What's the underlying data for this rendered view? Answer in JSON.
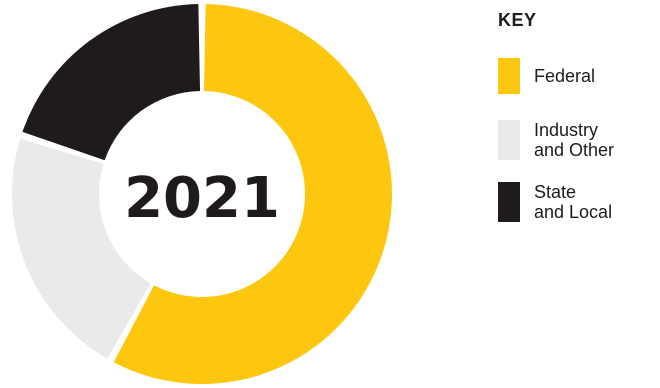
{
  "chart_data": {
    "type": "pie",
    "center_label": "2021",
    "legend_title": "KEY",
    "categories": [
      "Federal",
      "Industry\nand Other",
      "State\nand Local"
    ],
    "values": [
      58,
      22,
      20
    ],
    "colors": [
      "#FDC70F",
      "#E9EAEA",
      "#1F1B1C"
    ],
    "donut": true,
    "legend_placement": "right"
  }
}
